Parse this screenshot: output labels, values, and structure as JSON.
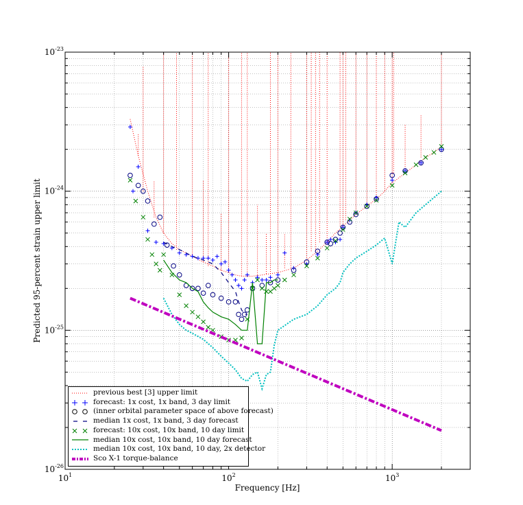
{
  "chart_data": {
    "type": "line",
    "title": "",
    "xlabel": "Frequency [Hz]",
    "ylabel": "Predicted 95-percent strain upper limit",
    "xscale": "log",
    "yscale": "log",
    "xlim": [
      10,
      3000
    ],
    "ylim": [
      1e-26,
      1e-23
    ],
    "grid": true,
    "legend_position": "lower-left",
    "x_tick_labels": [
      {
        "base": "10",
        "exp": "1",
        "value": 10
      },
      {
        "base": "10",
        "exp": "2",
        "value": 100
      },
      {
        "base": "10",
        "exp": "3",
        "value": 1000
      }
    ],
    "y_tick_labels": [
      {
        "base": "10",
        "exp": "-26",
        "value": 1e-26
      },
      {
        "base": "10",
        "exp": "-25",
        "value": 1e-25
      },
      {
        "base": "10",
        "exp": "-24",
        "value": 1e-24
      },
      {
        "base": "10",
        "exp": "-23",
        "value": 1e-23
      }
    ],
    "series": [
      {
        "name": "previous best [3] upper limit",
        "color": "#ff0000",
        "style": "dotted",
        "x": [
          25,
          28,
          32,
          36,
          40,
          45,
          50,
          60,
          70,
          80,
          90,
          100,
          110,
          120,
          140,
          160,
          180,
          200,
          250,
          300,
          350,
          400,
          450,
          500,
          550,
          600,
          700,
          800,
          900,
          1000,
          1200,
          1400,
          1600,
          1800,
          2000
        ],
        "y": [
          3.3e-24,
          1.8e-24,
          1e-24,
          6.5e-25,
          5e-25,
          4.2e-25,
          3.8e-25,
          3.4e-25,
          3.1e-25,
          2.9e-25,
          2.7e-25,
          2.6e-25,
          2.5e-25,
          2.45e-25,
          2.45e-25,
          2.5e-25,
          2.55e-25,
          2.6e-25,
          2.8e-25,
          3.2e-25,
          3.7e-25,
          4.3e-25,
          5e-25,
          5.6e-25,
          6.2e-25,
          6.8e-25,
          7.8e-25,
          8.8e-25,
          1e-24,
          1.15e-24,
          1.35e-24,
          1.55e-24,
          1.75e-24,
          1.9e-24,
          2.1e-24
        ],
        "spikes": [
          {
            "x": 28,
            "y": 2.6e-24
          },
          {
            "x": 30,
            "y": 8e-24
          },
          {
            "x": 35,
            "y": 1.2e-24
          },
          {
            "x": 40,
            "y": 1e-23
          },
          {
            "x": 48,
            "y": 1e-23
          },
          {
            "x": 60,
            "y": 1e-23
          },
          {
            "x": 70,
            "y": 1.2e-24
          },
          {
            "x": 75,
            "y": 1e-23
          },
          {
            "x": 90,
            "y": 7e-25
          },
          {
            "x": 100,
            "y": 1e-23
          },
          {
            "x": 120,
            "y": 1e-23
          },
          {
            "x": 130,
            "y": 1e-23
          },
          {
            "x": 150,
            "y": 8e-25
          },
          {
            "x": 170,
            "y": 5e-25
          },
          {
            "x": 180,
            "y": 1e-23
          },
          {
            "x": 200,
            "y": 1e-23
          },
          {
            "x": 220,
            "y": 5e-25
          },
          {
            "x": 240,
            "y": 1e-23
          },
          {
            "x": 300,
            "y": 1e-23
          },
          {
            "x": 320,
            "y": 1e-23
          },
          {
            "x": 340,
            "y": 1e-23
          },
          {
            "x": 360,
            "y": 1e-23
          },
          {
            "x": 400,
            "y": 1e-23
          },
          {
            "x": 480,
            "y": 1e-23
          },
          {
            "x": 500,
            "y": 1e-23
          },
          {
            "x": 520,
            "y": 1e-23
          },
          {
            "x": 600,
            "y": 1e-23
          },
          {
            "x": 700,
            "y": 1e-23
          },
          {
            "x": 800,
            "y": 1e-23
          },
          {
            "x": 900,
            "y": 1e-23
          },
          {
            "x": 1000,
            "y": 1e-23
          },
          {
            "x": 1020,
            "y": 1e-23
          },
          {
            "x": 1200,
            "y": 3e-24
          },
          {
            "x": 1500,
            "y": 3.5e-24
          },
          {
            "x": 2000,
            "y": 1e-23
          }
        ]
      },
      {
        "name": "forecast: 1x cost, 1x band, 3 day limit",
        "color": "#0000ff",
        "style": "plus",
        "x": [
          25,
          26,
          28,
          32,
          36,
          40,
          45,
          50,
          55,
          60,
          65,
          70,
          75,
          80,
          85,
          90,
          95,
          100,
          105,
          110,
          115,
          120,
          125,
          130,
          140,
          150,
          160,
          170,
          180,
          200,
          220,
          250,
          300,
          350,
          400,
          420,
          450,
          480,
          500,
          550,
          600,
          700,
          800,
          1000,
          1200,
          1500,
          2000
        ],
        "y": [
          2.9e-24,
          1e-24,
          1.5e-24,
          5.2e-25,
          4.3e-25,
          4.2e-25,
          3.9e-25,
          3.6e-25,
          3.5e-25,
          3.4e-25,
          3.3e-25,
          3.3e-25,
          3.3e-25,
          3.2e-25,
          3.4e-25,
          3e-25,
          3.1e-25,
          2.7e-25,
          2.5e-25,
          2.3e-25,
          2.1e-25,
          2e-25,
          2.3e-25,
          2.5e-25,
          2.2e-25,
          2.4e-25,
          2.3e-25,
          2.3e-25,
          2.4e-25,
          2.5e-25,
          3.6e-25,
          2.8e-25,
          3e-25,
          3.5e-25,
          4.3e-25,
          4.5e-25,
          4.3e-25,
          4.5e-25,
          5.5e-25,
          6.2e-25,
          7e-25,
          8e-25,
          9e-25,
          1.2e-24,
          1.4e-24,
          1.6e-24,
          2e-24
        ]
      },
      {
        "name": "(inner orbital parameter space of above forecast)",
        "color": "#000080",
        "style": "circle",
        "x": [
          25,
          28,
          30,
          32,
          35,
          38,
          42,
          46,
          50,
          55,
          60,
          65,
          70,
          75,
          80,
          90,
          100,
          110,
          115,
          120,
          125,
          130,
          140,
          160,
          180,
          200,
          250,
          300,
          350,
          400,
          420,
          450,
          480,
          500,
          550,
          600,
          700,
          800,
          1000,
          1200,
          1500,
          2000
        ],
        "y": [
          1.3e-24,
          1.1e-24,
          1e-24,
          8.5e-25,
          5.8e-25,
          6.5e-25,
          4.1e-25,
          2.9e-25,
          2.5e-25,
          2.1e-25,
          2e-25,
          2e-25,
          1.85e-25,
          2.1e-25,
          1.8e-25,
          1.7e-25,
          1.6e-25,
          1.6e-25,
          1.3e-25,
          1.2e-25,
          1.3e-25,
          1.4e-25,
          2e-25,
          2.1e-25,
          2.2e-25,
          2.3e-25,
          2.7e-25,
          3.1e-25,
          3.7e-25,
          4.3e-25,
          4.2e-25,
          4.5e-25,
          5e-25,
          5.5e-25,
          6e-25,
          6.8e-25,
          7.8e-25,
          8.8e-25,
          1.3e-24,
          1.4e-24,
          1.6e-24,
          2e-24
        ]
      },
      {
        "name": "median 1x cost, 1x band, 3 day forecast",
        "color": "#000080",
        "style": "dashed",
        "x": [
          40,
          45,
          50,
          55,
          60,
          70,
          80,
          90,
          100,
          110,
          115,
          120,
          125,
          130
        ],
        "y": [
          4.3e-25,
          4e-25,
          3.8e-25,
          3.6e-25,
          3.4e-25,
          3.2e-25,
          3e-25,
          2.6e-25,
          2.2e-25,
          1.9e-25,
          1.6e-25,
          1.4e-25,
          1.3e-25,
          1.3e-25
        ]
      },
      {
        "name": "forecast: 10x cost, 10x band, 10 day limit",
        "color": "#008000",
        "style": "x",
        "x": [
          25,
          27,
          30,
          32,
          34,
          36,
          38,
          40,
          45,
          50,
          55,
          60,
          65,
          70,
          75,
          80,
          90,
          100,
          110,
          120,
          130,
          140,
          150,
          160,
          170,
          180,
          190,
          200,
          220,
          250,
          300,
          350,
          400,
          450,
          500,
          550,
          600,
          700,
          800,
          1000,
          1200,
          1400,
          1600,
          1800,
          2000
        ],
        "y": [
          1.2e-24,
          8.5e-25,
          6.5e-25,
          4.5e-25,
          3.5e-25,
          3e-25,
          2.7e-25,
          3.5e-25,
          2.5e-25,
          1.8e-25,
          1.5e-25,
          1.35e-25,
          1.25e-25,
          1.15e-25,
          1.05e-25,
          1e-25,
          9e-26,
          8.5e-26,
          8.5e-26,
          8.8e-26,
          1.2e-25,
          2e-25,
          2.3e-25,
          2e-25,
          1.9e-25,
          1.9e-25,
          2e-25,
          2.1e-25,
          2.3e-25,
          2.5e-25,
          2.9e-25,
          3.3e-25,
          3.9e-25,
          4.4e-25,
          5.3e-25,
          6.3e-25,
          7e-25,
          7.8e-25,
          8.6e-25,
          1.1e-24,
          1.35e-24,
          1.55e-24,
          1.75e-24,
          1.9e-24,
          2.1e-24
        ]
      },
      {
        "name": "median 10x cost, 10x band, 10 day forecast",
        "color": "#008000",
        "style": "solid",
        "x": [
          40,
          45,
          50,
          55,
          60,
          65,
          70,
          75,
          80,
          90,
          100,
          110,
          120,
          130,
          140,
          150,
          160,
          170,
          180,
          190,
          200
        ],
        "y": [
          3.2e-25,
          2.6e-25,
          2.3e-25,
          2.2e-25,
          2e-25,
          1.9e-25,
          1.6e-25,
          1.45e-25,
          1.35e-25,
          1.25e-25,
          1.2e-25,
          1.1e-25,
          1e-25,
          1e-25,
          2.2e-25,
          8e-26,
          8e-26,
          2.2e-25,
          2.2e-25,
          2.3e-25,
          2.3e-25
        ]
      },
      {
        "name": "median 10x cost, 10x band, 10 day, 2x detector",
        "color": "#00bfbf",
        "style": "dotted",
        "x": [
          40,
          45,
          50,
          55,
          60,
          70,
          80,
          90,
          100,
          110,
          120,
          130,
          140,
          150,
          160,
          170,
          180,
          190,
          200,
          250,
          300,
          350,
          400,
          450,
          480,
          500,
          550,
          600,
          700,
          800,
          900,
          1000,
          1100,
          1200,
          1400,
          1600,
          1800,
          2000
        ],
        "y": [
          1.7e-25,
          1.3e-25,
          1.1e-25,
          1e-25,
          9.5e-26,
          8.6e-26,
          7.5e-26,
          6.5e-26,
          5.8e-26,
          5.2e-26,
          4.5e-26,
          4.3e-26,
          4.8e-26,
          5e-26,
          3.8e-26,
          4.8e-26,
          5e-26,
          7.8e-26,
          1e-25,
          1.2e-25,
          1.3e-25,
          1.5e-25,
          1.8e-25,
          2e-25,
          2.2e-25,
          2.6e-25,
          3e-25,
          3.3e-25,
          3.7e-25,
          4.1e-25,
          4.6e-25,
          3e-25,
          6e-25,
          5.5e-25,
          7e-25,
          8e-25,
          9e-25,
          1e-24
        ]
      },
      {
        "name": "Sco X-1 torque-balance",
        "color": "#bf00bf",
        "style": "dashdot-thick",
        "x": [
          25,
          2000
        ],
        "y": [
          1.7e-25,
          1.9e-26
        ]
      }
    ]
  }
}
